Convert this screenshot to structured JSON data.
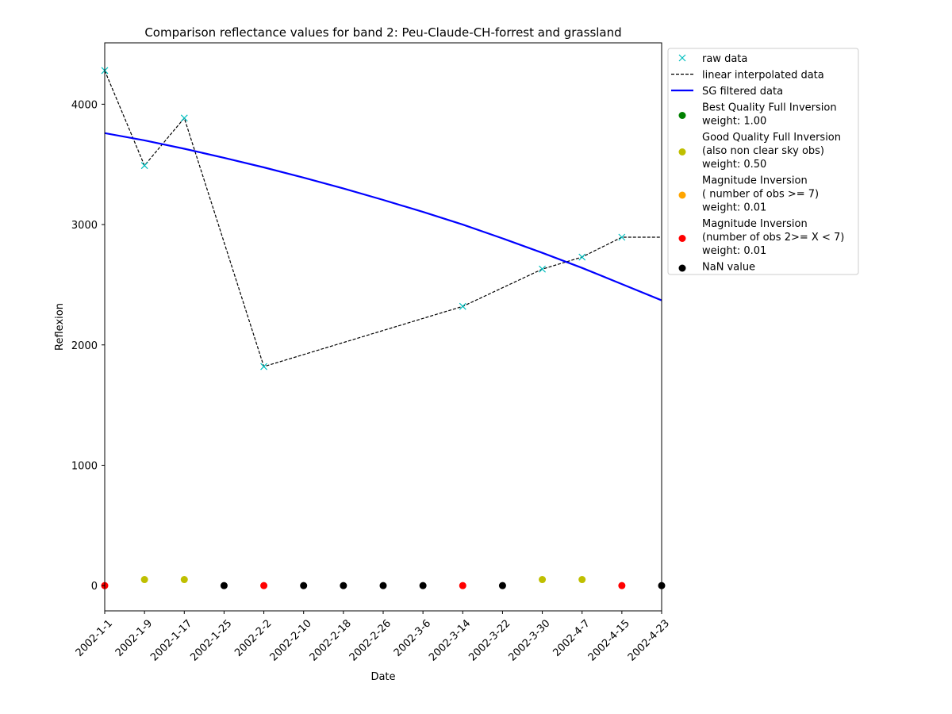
{
  "chart_data": {
    "type": "line",
    "title": "Comparison reflectance values for band 2: Peu-Claude-CH-forrest and grassland",
    "xlabel": "Date",
    "ylabel": "Reflexion",
    "x_ticks": [
      "2002-1-1",
      "2002-1-9",
      "2002-1-17",
      "2002-1-25",
      "2002-2-2",
      "2002-2-10",
      "2002-2-18",
      "2002-2-26",
      "2002-3-6",
      "2002-3-14",
      "2002-3-22",
      "2002-3-30",
      "2002-4-7",
      "2002-4-15",
      "2002-4-23"
    ],
    "y_ticks": [
      "0",
      "1000",
      "2000",
      "3000",
      "4000"
    ],
    "ylim": [
      -210,
      4510
    ],
    "grid": false,
    "legend_position": "outside-right",
    "series": [
      {
        "name": "raw data",
        "kind": "markers-x",
        "color": "#00bfbf",
        "points": [
          {
            "x": 0,
            "y": 4280
          },
          {
            "x": 1,
            "y": 3490
          },
          {
            "x": 2,
            "y": 3885
          },
          {
            "x": 4,
            "y": 1820
          },
          {
            "x": 9,
            "y": 2320
          },
          {
            "x": 11,
            "y": 2630
          },
          {
            "x": 12,
            "y": 2730
          },
          {
            "x": 13,
            "y": 2895
          }
        ]
      },
      {
        "name": "linear interpolated data",
        "kind": "dashed-line",
        "color": "#000000",
        "points": [
          {
            "x": 0,
            "y": 4280
          },
          {
            "x": 1,
            "y": 3490
          },
          {
            "x": 2,
            "y": 3885
          },
          {
            "x": 4,
            "y": 1820
          },
          {
            "x": 9,
            "y": 2320
          },
          {
            "x": 11,
            "y": 2630
          },
          {
            "x": 12,
            "y": 2730
          },
          {
            "x": 13,
            "y": 2895
          },
          {
            "x": 14,
            "y": 2895
          }
        ]
      },
      {
        "name": "SG filtered data",
        "kind": "solid-line",
        "color": "#0000ff",
        "points": [
          {
            "x": 0,
            "y": 3760
          },
          {
            "x": 1,
            "y": 3700
          },
          {
            "x": 2,
            "y": 3630
          },
          {
            "x": 3,
            "y": 3555
          },
          {
            "x": 4,
            "y": 3475
          },
          {
            "x": 5,
            "y": 3390
          },
          {
            "x": 6,
            "y": 3300
          },
          {
            "x": 7,
            "y": 3205
          },
          {
            "x": 8,
            "y": 3105
          },
          {
            "x": 9,
            "y": 3000
          },
          {
            "x": 10,
            "y": 2885
          },
          {
            "x": 11,
            "y": 2765
          },
          {
            "x": 12,
            "y": 2640
          },
          {
            "x": 13,
            "y": 2505
          },
          {
            "x": 14,
            "y": 2370
          }
        ]
      }
    ],
    "quality_points": [
      {
        "x": 0,
        "y": 0,
        "category": 3
      },
      {
        "x": 1,
        "y": 50,
        "category": 1
      },
      {
        "x": 2,
        "y": 50,
        "category": 1
      },
      {
        "x": 3,
        "y": 0,
        "category": 4
      },
      {
        "x": 4,
        "y": 0,
        "category": 3
      },
      {
        "x": 5,
        "y": 0,
        "category": 4
      },
      {
        "x": 6,
        "y": 0,
        "category": 4
      },
      {
        "x": 7,
        "y": 0,
        "category": 4
      },
      {
        "x": 8,
        "y": 0,
        "category": 4
      },
      {
        "x": 9,
        "y": 0,
        "category": 3
      },
      {
        "x": 10,
        "y": 0,
        "category": 4
      },
      {
        "x": 11,
        "y": 50,
        "category": 1
      },
      {
        "x": 12,
        "y": 50,
        "category": 1
      },
      {
        "x": 13,
        "y": 0,
        "category": 3
      },
      {
        "x": 14,
        "y": 0,
        "category": 4
      }
    ],
    "quality_categories": [
      {
        "lines": [
          "Best Quality Full Inversion",
          "weight: 1.00"
        ],
        "color": "#008000"
      },
      {
        "lines": [
          "Good Quality Full Inversion",
          "(also non clear sky obs)",
          "weight: 0.50"
        ],
        "color": "#bfbf00"
      },
      {
        "lines": [
          "Magnitude Inversion",
          "( number of obs >= 7)",
          "weight: 0.01"
        ],
        "color": "#ffa500"
      },
      {
        "lines": [
          "Magnitude Inversion",
          "(number of obs 2>= X < 7)",
          "weight: 0.01"
        ],
        "color": "#ff0000"
      },
      {
        "lines": [
          "NaN value"
        ],
        "color": "#000000"
      }
    ]
  }
}
